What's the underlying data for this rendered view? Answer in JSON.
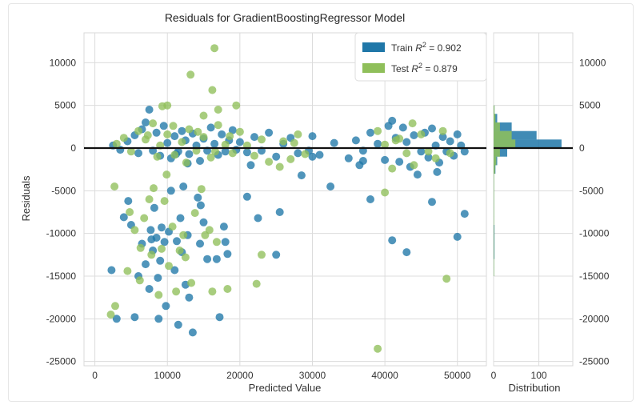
{
  "chart_data": {
    "type": "scatter",
    "title": "Residuals for GradientBoostingRegressor Model",
    "xlabel": "Predicted Value",
    "ylabel": "Residuals",
    "xlim": [
      -1500,
      54000
    ],
    "ylim": [
      -25500,
      13500
    ],
    "xticks": [
      0,
      10000,
      20000,
      30000,
      40000,
      50000
    ],
    "yticks": [
      -25000,
      -20000,
      -15000,
      -10000,
      -5000,
      0,
      5000,
      10000
    ],
    "legend_placement": "top-right",
    "grid": true,
    "zero_line": 0,
    "series": [
      {
        "name": "Train",
        "legend": "Train R² = 0.902",
        "legend_prefix": "Train ",
        "legend_r2": "R",
        "legend_value": " = 0.902",
        "color": "#1f77a8",
        "points": [
          [
            2300,
            -14300
          ],
          [
            3000,
            -20000
          ],
          [
            4000,
            -8100
          ],
          [
            4600,
            -6200
          ],
          [
            5000,
            -9000
          ],
          [
            5500,
            -19800
          ],
          [
            6000,
            -15000
          ],
          [
            6500,
            -11200
          ],
          [
            7000,
            -13600
          ],
          [
            7500,
            -16500
          ],
          [
            7700,
            -9600
          ],
          [
            8000,
            -12000
          ],
          [
            8200,
            -7000
          ],
          [
            8500,
            -10500
          ],
          [
            8800,
            -20000
          ],
          [
            9000,
            -13200
          ],
          [
            9600,
            -11000
          ],
          [
            9800,
            -18500
          ],
          [
            10200,
            -9800
          ],
          [
            10500,
            -5000
          ],
          [
            11000,
            -14300
          ],
          [
            11500,
            -20700
          ],
          [
            11800,
            -8200
          ],
          [
            12000,
            -12200
          ],
          [
            12500,
            -16000
          ],
          [
            12800,
            -10200
          ],
          [
            13000,
            -17500
          ],
          [
            13500,
            -21600
          ],
          [
            14200,
            -5800
          ],
          [
            14500,
            -11200
          ],
          [
            15000,
            -8700
          ],
          [
            15500,
            -13000
          ],
          [
            16800,
            -13000
          ],
          [
            17200,
            -19800
          ],
          [
            17800,
            -9200
          ],
          [
            18000,
            -11000
          ],
          [
            18300,
            -12400
          ],
          [
            21000,
            -5700
          ],
          [
            22500,
            -8200
          ],
          [
            25000,
            -12500
          ],
          [
            25500,
            -7500
          ],
          [
            28500,
            -3200
          ],
          [
            30000,
            -1000
          ],
          [
            32500,
            -4500
          ],
          [
            37000,
            -1500
          ],
          [
            38000,
            -6000
          ],
          [
            41000,
            -10800
          ],
          [
            43000,
            -12200
          ],
          [
            46500,
            -6300
          ],
          [
            50000,
            -10400
          ],
          [
            51000,
            -7700
          ],
          [
            7800,
            -10700
          ],
          [
            8700,
            -15200
          ],
          [
            11300,
            -10900
          ],
          [
            14600,
            -6700
          ],
          [
            12200,
            -4500
          ],
          [
            9200,
            -9300
          ],
          [
            2500,
            300
          ],
          [
            3500,
            -200
          ],
          [
            4500,
            800
          ],
          [
            5500,
            1500
          ],
          [
            6000,
            -600
          ],
          [
            6500,
            2200
          ],
          [
            7000,
            3000
          ],
          [
            7500,
            4500
          ],
          [
            8000,
            -300
          ],
          [
            8500,
            1800
          ],
          [
            9000,
            -900
          ],
          [
            9500,
            2600
          ],
          [
            10000,
            600
          ],
          [
            10500,
            -1200
          ],
          [
            11000,
            1400
          ],
          [
            11500,
            -400
          ],
          [
            12000,
            2000
          ],
          [
            12500,
            900
          ],
          [
            13000,
            -700
          ],
          [
            13500,
            1700
          ],
          [
            14000,
            300
          ],
          [
            14500,
            -1500
          ],
          [
            15000,
            1100
          ],
          [
            15500,
            -300
          ],
          [
            16000,
            2400
          ],
          [
            16500,
            500
          ],
          [
            17000,
            -800
          ],
          [
            17500,
            1600
          ],
          [
            18000,
            -400
          ],
          [
            18500,
            900
          ],
          [
            19000,
            2100
          ],
          [
            19500,
            -200
          ],
          [
            20000,
            700
          ],
          [
            21000,
            -500
          ],
          [
            22000,
            1300
          ],
          [
            23000,
            -300
          ],
          [
            24000,
            1800
          ],
          [
            25000,
            -1000
          ],
          [
            26000,
            500
          ],
          [
            27000,
            1200
          ],
          [
            28000,
            -600
          ],
          [
            30000,
            1400
          ],
          [
            31000,
            -800
          ],
          [
            33000,
            600
          ],
          [
            35000,
            -1200
          ],
          [
            36000,
            900
          ],
          [
            37000,
            -300
          ],
          [
            38000,
            1800
          ],
          [
            39000,
            500
          ],
          [
            40000,
            -1400
          ],
          [
            40500,
            2600
          ],
          [
            41000,
            3200
          ],
          [
            41500,
            1200
          ],
          [
            42000,
            -1600
          ],
          [
            42500,
            2400
          ],
          [
            43000,
            700
          ],
          [
            43500,
            -2200
          ],
          [
            44000,
            1500
          ],
          [
            45000,
            -400
          ],
          [
            45500,
            1800
          ],
          [
            46000,
            -1100
          ],
          [
            46500,
            2300
          ],
          [
            47000,
            300
          ],
          [
            47500,
            -1700
          ],
          [
            48000,
            1300
          ],
          [
            48500,
            -400
          ],
          [
            49000,
            800
          ],
          [
            49500,
            -900
          ],
          [
            50000,
            1600
          ],
          [
            50500,
            300
          ],
          [
            51000,
            -400
          ],
          [
            11200,
            -700
          ],
          [
            12800,
            -1800
          ],
          [
            21500,
            -2000
          ],
          [
            29500,
            -300
          ],
          [
            36500,
            -2000
          ],
          [
            44500,
            -3100
          ],
          [
            47200,
            -2800
          ]
        ]
      },
      {
        "name": "Test",
        "legend": "Test R² = 0.879",
        "legend_prefix": "Test ",
        "legend_r2": "R",
        "legend_value": " = 0.879",
        "color": "#8fbf5a",
        "points": [
          [
            16500,
            11700
          ],
          [
            13200,
            8600
          ],
          [
            16200,
            6800
          ],
          [
            10000,
            5000
          ],
          [
            9300,
            4900
          ],
          [
            19500,
            5000
          ],
          [
            17000,
            4500
          ],
          [
            15000,
            3800
          ],
          [
            2200,
            -19500
          ],
          [
            2800,
            -18500
          ],
          [
            2700,
            -4500
          ],
          [
            4500,
            -14400
          ],
          [
            4800,
            -7500
          ],
          [
            5500,
            -9600
          ],
          [
            6200,
            -15500
          ],
          [
            6300,
            -11700
          ],
          [
            6800,
            -8200
          ],
          [
            7500,
            -6000
          ],
          [
            7800,
            -12500
          ],
          [
            8100,
            -4700
          ],
          [
            8800,
            -17200
          ],
          [
            9200,
            -11800
          ],
          [
            9600,
            -6200
          ],
          [
            9900,
            -3100
          ],
          [
            10200,
            -13800
          ],
          [
            10700,
            -9200
          ],
          [
            11200,
            -16800
          ],
          [
            11700,
            -12000
          ],
          [
            12200,
            -10200
          ],
          [
            12500,
            -12800
          ],
          [
            13300,
            -15800
          ],
          [
            13800,
            -7600
          ],
          [
            14700,
            -4800
          ],
          [
            15200,
            -10200
          ],
          [
            15800,
            -9600
          ],
          [
            16200,
            -16800
          ],
          [
            16800,
            -11000
          ],
          [
            18300,
            -16500
          ],
          [
            22300,
            -15900
          ],
          [
            23000,
            -12500
          ],
          [
            39000,
            -23500
          ],
          [
            40000,
            -5200
          ],
          [
            48500,
            -15300
          ],
          [
            3000,
            500
          ],
          [
            4000,
            1200
          ],
          [
            5000,
            -400
          ],
          [
            6000,
            2000
          ],
          [
            7000,
            1000
          ],
          [
            8000,
            2900
          ],
          [
            9000,
            300
          ],
          [
            10000,
            1600
          ],
          [
            11000,
            -800
          ],
          [
            12000,
            700
          ],
          [
            13000,
            2200
          ],
          [
            14000,
            -300
          ],
          [
            15000,
            1300
          ],
          [
            16000,
            -1100
          ],
          [
            17000,
            2700
          ],
          [
            18000,
            400
          ],
          [
            19000,
            -600
          ],
          [
            20000,
            1900
          ],
          [
            21000,
            300
          ],
          [
            22000,
            -900
          ],
          [
            23000,
            1000
          ],
          [
            24000,
            -1600
          ],
          [
            26000,
            800
          ],
          [
            27000,
            -1300
          ],
          [
            28000,
            1600
          ],
          [
            29000,
            -700
          ],
          [
            39000,
            2000
          ],
          [
            40000,
            400
          ],
          [
            41000,
            -2400
          ],
          [
            42000,
            1100
          ],
          [
            43000,
            -600
          ],
          [
            44000,
            -2000
          ],
          [
            45000,
            1600
          ],
          [
            46000,
            -400
          ],
          [
            47000,
            -1200
          ],
          [
            48000,
            2000
          ],
          [
            49000,
            -600
          ],
          [
            7300,
            1500
          ],
          [
            8600,
            -1000
          ],
          [
            10800,
            2600
          ],
          [
            12600,
            -1700
          ],
          [
            14200,
            1900
          ],
          [
            16600,
            -400
          ],
          [
            18600,
            1400
          ],
          [
            25500,
            -2200
          ],
          [
            27500,
            600
          ],
          [
            41500,
            900
          ],
          [
            43800,
            2900
          ]
        ]
      }
    ],
    "histogram": {
      "xlabel": "Distribution",
      "xticks": [
        0,
        100
      ],
      "xlim": [
        0,
        175
      ],
      "bins": [
        -25000,
        -24000,
        -23000,
        -22000,
        -21000,
        -20000,
        -19000,
        -18000,
        -17000,
        -16000,
        -15000,
        -14000,
        -13000,
        -12000,
        -11000,
        -10000,
        -9000,
        -8000,
        -7000,
        -6000,
        -5000,
        -4000,
        -3000,
        -2000,
        -1000,
        0,
        1000,
        2000,
        3000,
        4000,
        5000
      ],
      "train_counts": [
        0,
        0,
        0,
        0,
        0,
        0,
        0,
        0,
        0,
        0,
        1,
        1,
        2,
        2,
        2,
        2,
        1,
        1,
        1,
        1,
        1,
        1,
        4,
        8,
        30,
        150,
        95,
        40,
        8,
        2
      ],
      "test_counts": [
        0,
        0,
        0,
        0,
        0,
        0,
        0,
        0,
        0,
        0,
        1,
        1,
        1,
        1,
        1,
        1,
        1,
        1,
        1,
        1,
        1,
        1,
        3,
        6,
        14,
        48,
        40,
        14,
        4,
        2
      ]
    }
  }
}
